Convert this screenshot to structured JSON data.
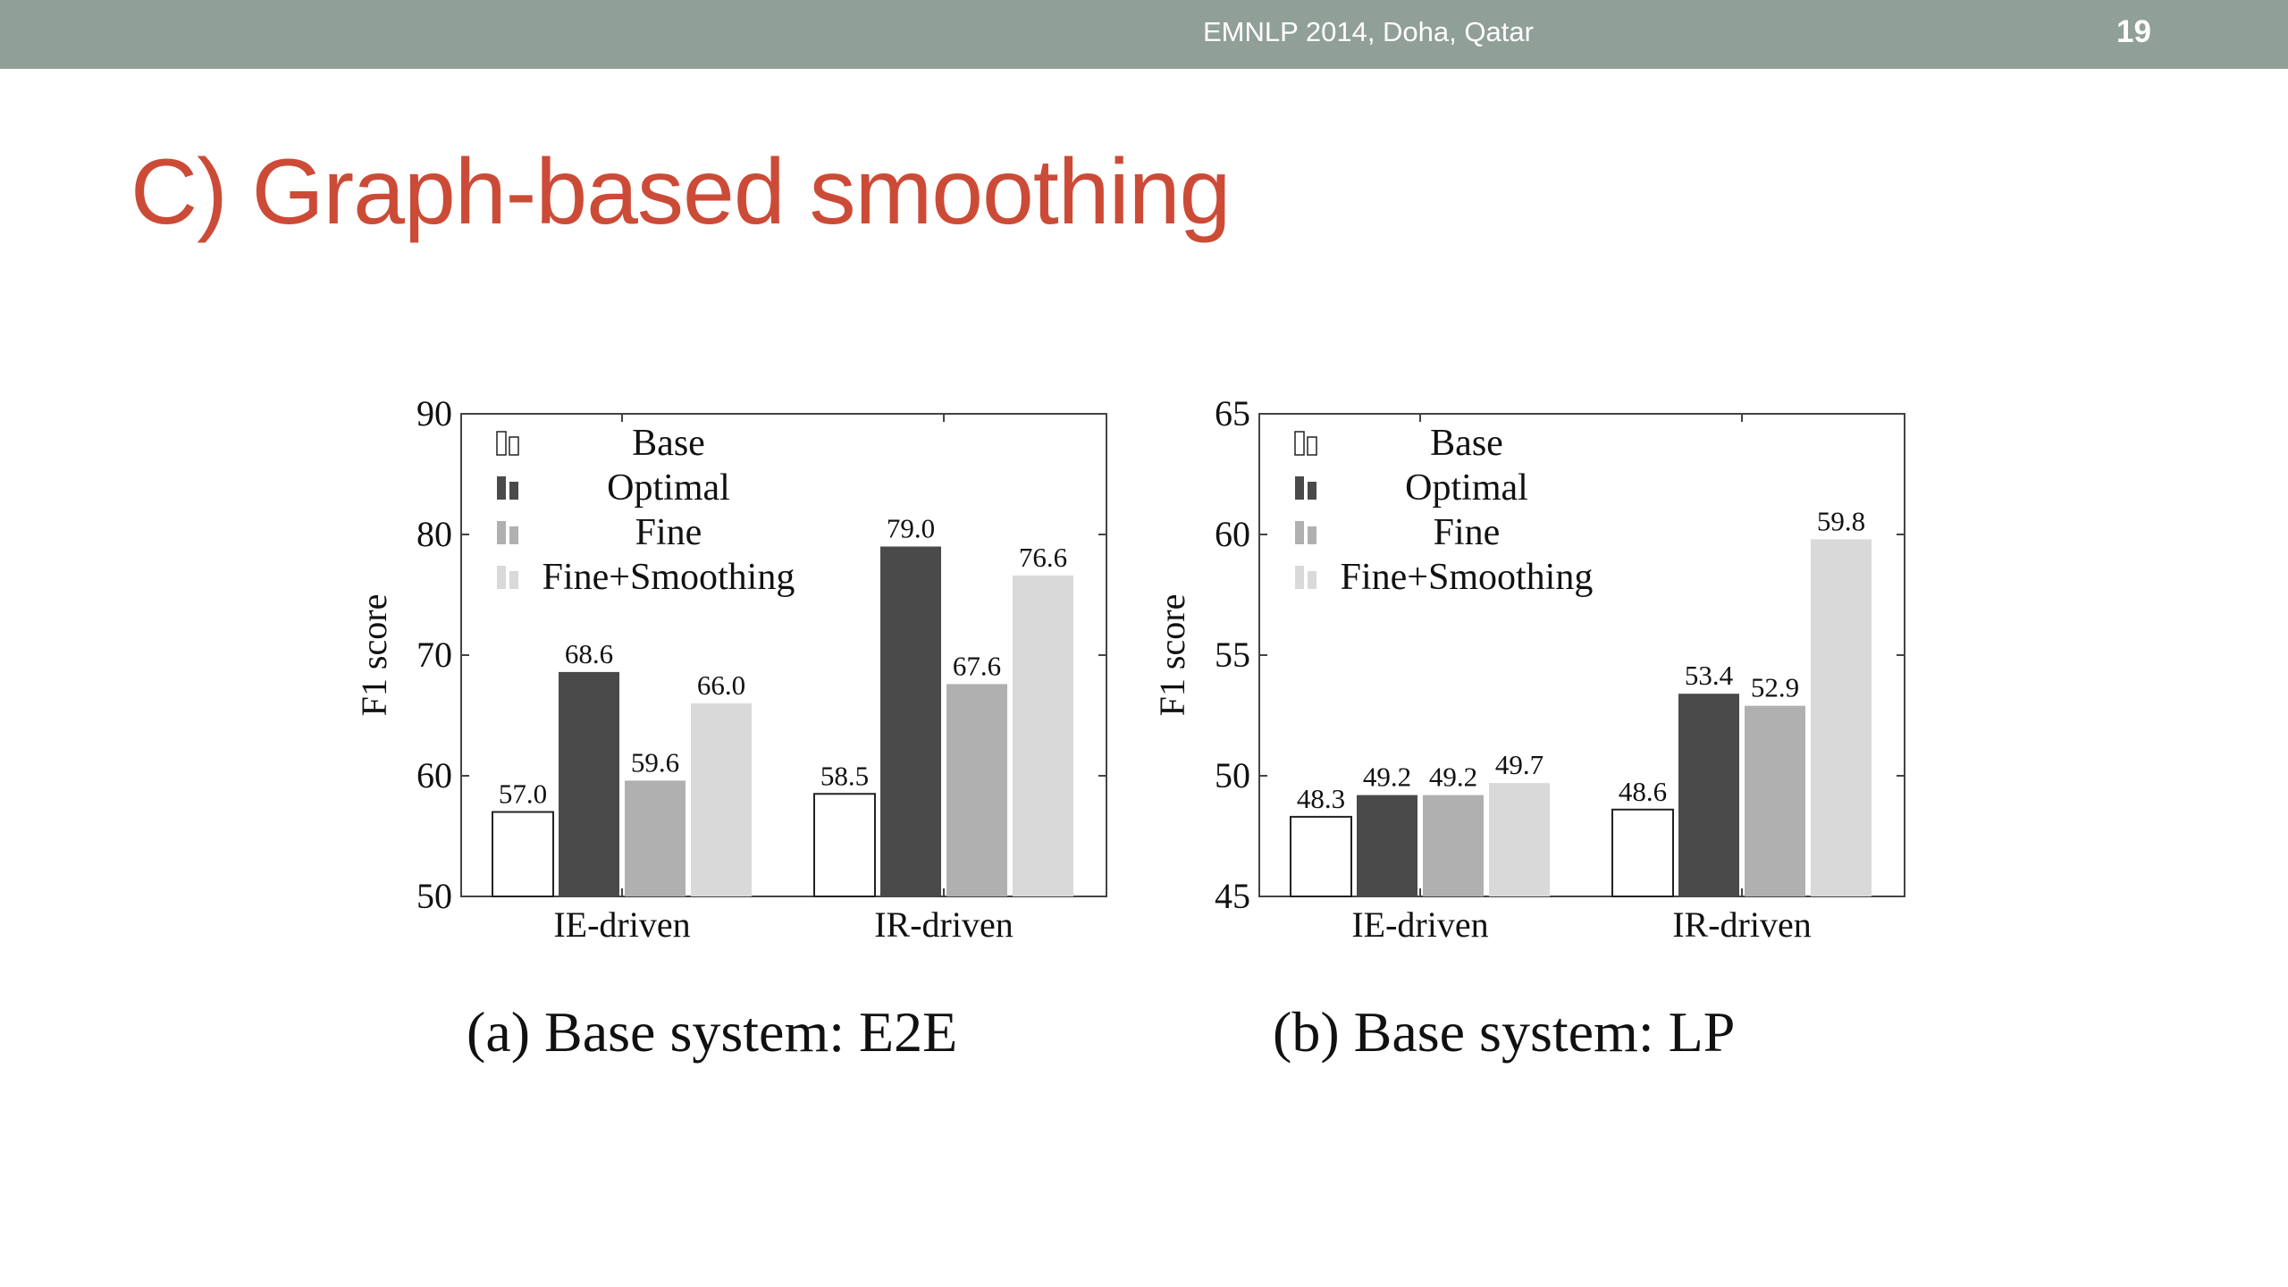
{
  "header": {
    "conference": "EMNLP 2014, Doha, Qatar",
    "page_number": "19",
    "bar_color": "#909f98"
  },
  "slide": {
    "title": "C) Graph-based smoothing",
    "title_color": "#cc4b37"
  },
  "series_colors": {
    "Base": "#ffffff",
    "Optimal": "#4a4a4a",
    "Fine": "#b0b0b0",
    "Fine+Smoothing": "#d9d9d9"
  },
  "chart_data": [
    {
      "type": "bar",
      "caption": "(a) Base system: E2E",
      "ylabel": "F1 score",
      "ylim": [
        50,
        90
      ],
      "yticks": [
        50,
        60,
        70,
        80,
        90
      ],
      "categories": [
        "IE-driven",
        "IR-driven"
      ],
      "legend_position": "top-left",
      "series": [
        {
          "name": "Base",
          "values": [
            57.0,
            58.5
          ]
        },
        {
          "name": "Optimal",
          "values": [
            68.6,
            79.0
          ]
        },
        {
          "name": "Fine",
          "values": [
            59.6,
            67.6
          ]
        },
        {
          "name": "Fine+Smoothing",
          "values": [
            66.0,
            76.6
          ]
        }
      ]
    },
    {
      "type": "bar",
      "caption": "(b) Base system: LP",
      "ylabel": "F1 score",
      "ylim": [
        45,
        65
      ],
      "yticks": [
        45,
        50,
        55,
        60,
        65
      ],
      "categories": [
        "IE-driven",
        "IR-driven"
      ],
      "legend_position": "top-left",
      "series": [
        {
          "name": "Base",
          "values": [
            48.3,
            48.6
          ]
        },
        {
          "name": "Optimal",
          "values": [
            49.2,
            53.4
          ]
        },
        {
          "name": "Fine",
          "values": [
            49.2,
            52.9
          ]
        },
        {
          "name": "Fine+Smoothing",
          "values": [
            49.7,
            59.8
          ]
        }
      ]
    }
  ]
}
